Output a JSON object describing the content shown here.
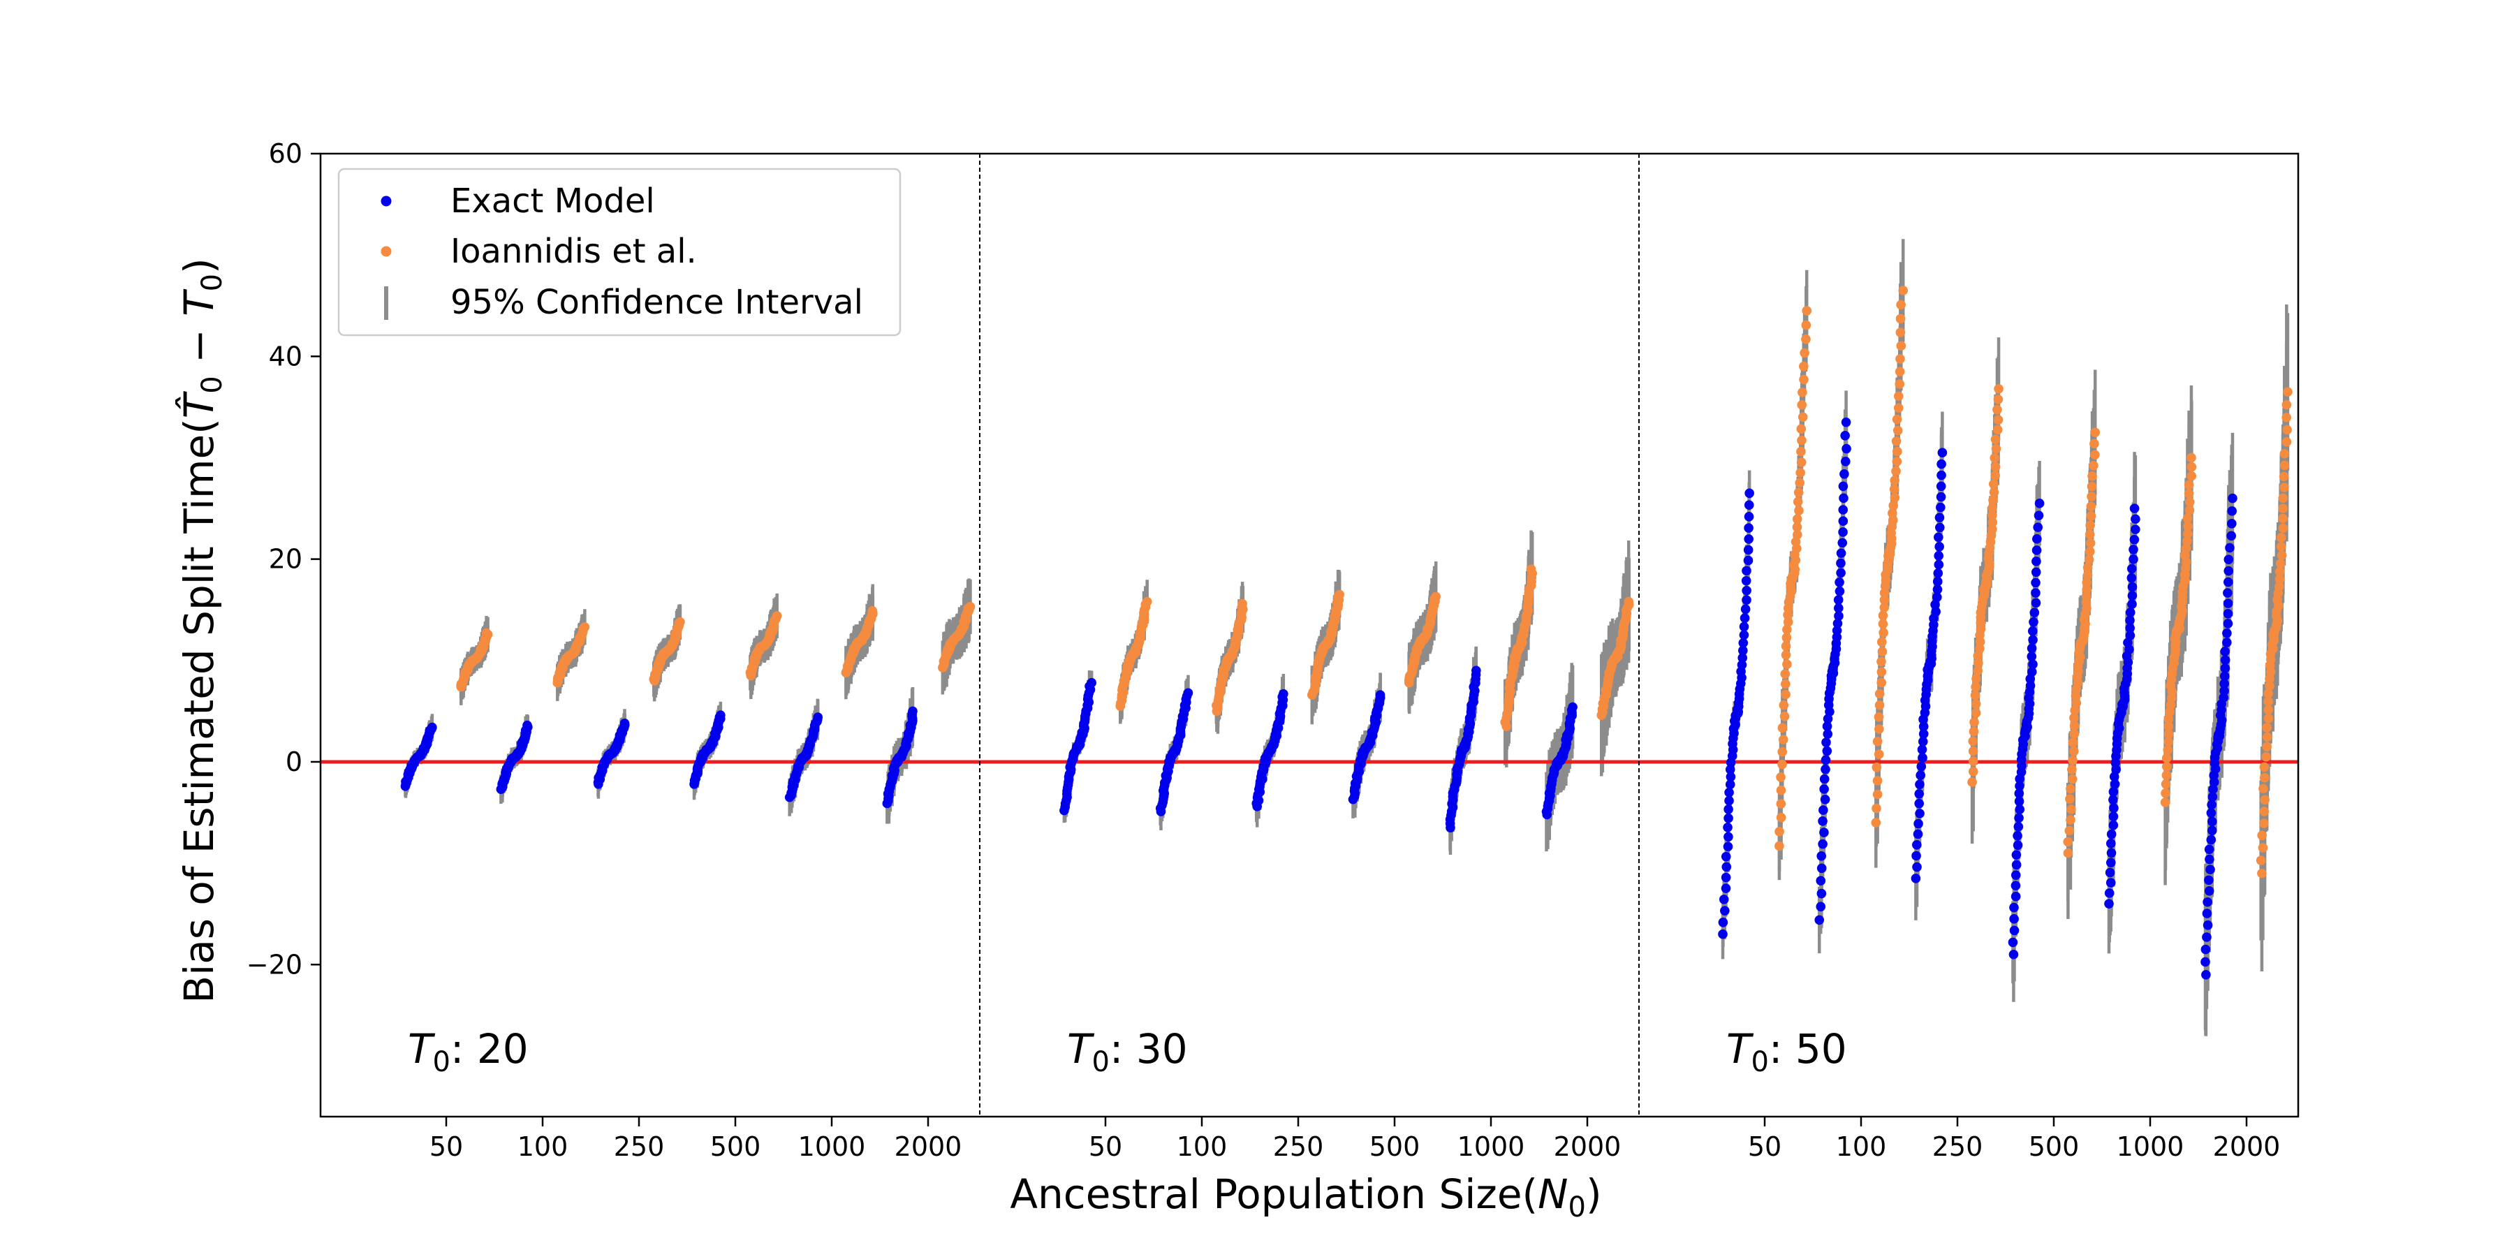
{
  "chart_data": {
    "type": "scatter",
    "title": "",
    "xlabel": "Ancestral Population Size(",
    "xlabel_var": "N",
    "xlabel_sub": "0",
    "ylabel": "Bias of Estimated Split Time(",
    "ylabel_var_hat": "T̂",
    "ylabel_sub": "0",
    "ylabel_minus": " − ",
    "ylabel_var": "T",
    "ylabel_sub2": "0",
    "ylim": [
      -35,
      60
    ],
    "yticks": [
      -20,
      0,
      20,
      40,
      60
    ],
    "yticks_labels": [
      "−20",
      "0",
      "20",
      "40",
      "60"
    ],
    "grid": false,
    "legend_position": "top-left",
    "legend": [
      {
        "name": "Exact Model",
        "marker": "dot",
        "color": "#0000ee"
      },
      {
        "name": "Ioannidis et al.",
        "marker": "dot",
        "color": "#f58b3f"
      },
      {
        "name": "95% Confidence Interval",
        "marker": "vline",
        "color": "#8c8c8c"
      }
    ],
    "reference_line": {
      "y": 0,
      "color": "#ee1c1c"
    },
    "x_categories": [
      "50",
      "100",
      "250",
      "500",
      "1000",
      "2000"
    ],
    "panels": [
      {
        "label_var": "T",
        "label_sub": "0",
        "label_text": ": 20",
        "groups": [
          {
            "n": "50",
            "exact": [
              -2.4,
              3.4,
              0.7
            ],
            "ioannidis": [
              7.4,
              12.7,
              1.0
            ]
          },
          {
            "n": "100",
            "exact": [
              -2.7,
              3.6,
              0.8
            ],
            "ioannidis": [
              7.8,
              13.3,
              1.1
            ]
          },
          {
            "n": "250",
            "exact": [
              -2.2,
              3.8,
              0.8
            ],
            "ioannidis": [
              8.0,
              13.8,
              1.2
            ]
          },
          {
            "n": "500",
            "exact": [
              -2.2,
              4.6,
              0.9
            ],
            "ioannidis": [
              8.5,
              14.4,
              1.3
            ]
          },
          {
            "n": "1000",
            "exact": [
              -3.5,
              4.4,
              1.1
            ],
            "ioannidis": [
              8.8,
              14.9,
              1.5
            ]
          },
          {
            "n": "2000",
            "exact": [
              -4.1,
              5.0,
              1.5
            ],
            "ioannidis": [
              9.3,
              15.3,
              1.8
            ]
          }
        ]
      },
      {
        "label_var": "T",
        "label_sub": "0",
        "label_text": ": 30",
        "groups": [
          {
            "n": "50",
            "exact": [
              -4.8,
              7.8,
              0.9
            ],
            "ioannidis": [
              5.5,
              15.8,
              1.2
            ]
          },
          {
            "n": "100",
            "exact": [
              -4.9,
              6.8,
              1.0
            ],
            "ioannidis": [
              5.0,
              15.6,
              1.4
            ]
          },
          {
            "n": "250",
            "exact": [
              -4.4,
              6.7,
              1.1
            ],
            "ioannidis": [
              6.6,
              16.5,
              1.6
            ]
          },
          {
            "n": "500",
            "exact": [
              -3.7,
              6.6,
              1.3
            ],
            "ioannidis": [
              7.8,
              16.3,
              1.9
            ]
          },
          {
            "n": "1000",
            "exact": [
              -6.5,
              9.0,
              1.7
            ],
            "ioannidis": [
              3.5,
              19.0,
              2.4
            ]
          },
          {
            "n": "2000",
            "exact": [
              -5.2,
              5.4,
              2.5
            ],
            "ioannidis": [
              4.6,
              15.8,
              3.2
            ]
          }
        ]
      },
      {
        "label_var": "T",
        "label_sub": "0",
        "label_text": ": 50",
        "groups": [
          {
            "n": "50",
            "exact": [
              -17.0,
              26.5,
              1.6
            ],
            "ioannidis": [
              -8.3,
              44.5,
              2.3
            ]
          },
          {
            "n": "100",
            "exact": [
              -15.6,
              33.5,
              1.9
            ],
            "ioannidis": [
              -6.0,
              46.5,
              2.7
            ]
          },
          {
            "n": "250",
            "exact": [
              -11.5,
              30.5,
              2.3
            ],
            "ioannidis": [
              -2.0,
              36.8,
              3.2
            ]
          },
          {
            "n": "500",
            "exact": [
              -19.0,
              25.5,
              2.9
            ],
            "ioannidis": [
              -9.0,
              32.5,
              3.8
            ]
          },
          {
            "n": "1000",
            "exact": [
              -14.0,
              25.0,
              3.6
            ],
            "ioannidis": [
              -4.0,
              30.0,
              4.6
            ]
          },
          {
            "n": "2000",
            "exact": [
              -21.0,
              26.0,
              4.6
            ],
            "ioannidis": [
              -11.0,
              36.5,
              5.8
            ]
          }
        ]
      }
    ]
  }
}
